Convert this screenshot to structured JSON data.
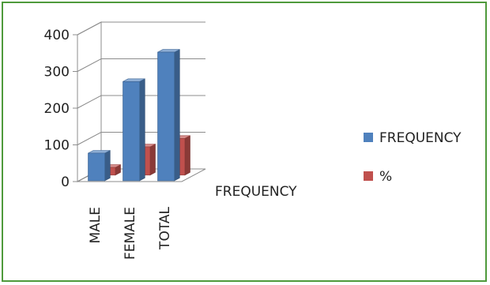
{
  "chart_data": {
    "type": "bar",
    "categories": [
      "MALE",
      "FEMALE",
      "TOTAL"
    ],
    "series": [
      {
        "name": "FREQUENCY",
        "values": [
          75,
          270,
          350
        ],
        "color": "#4f81bd"
      },
      {
        "name": "%",
        "values": [
          21,
          77,
          100
        ],
        "color": "#c0504d"
      }
    ],
    "depth_label": "FREQUENCY",
    "ylim": [
      0,
      400
    ],
    "yticks": [
      "0",
      "100",
      "200",
      "300",
      "400"
    ],
    "grid": true,
    "legend_position": "right",
    "three_d": true
  }
}
